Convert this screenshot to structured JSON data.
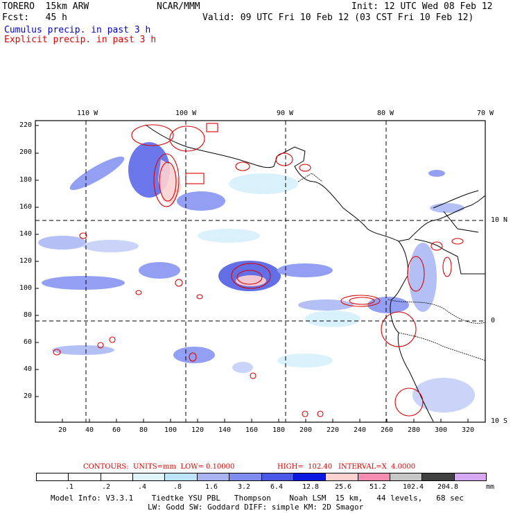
{
  "header": {
    "model_name": "TORERO  15km ARW",
    "org": "NCAR/MMM",
    "init": "Init: 12 UTC Wed 08 Feb 12",
    "fcst": "Fcst:   45 h",
    "valid": "Valid: 09 UTC Fri 10 Feb 12 (03 CST Fri 10 Feb 12)",
    "field1": "Cumulus precip. in past 3 h",
    "field2": "Explicit precip. in past 3 h"
  },
  "map": {
    "top_lon_labels": [
      "110 W",
      "100 W",
      "90 W",
      "80 W",
      "70 W"
    ],
    "right_lat_labels": [
      "10 N",
      "0",
      "10 S"
    ],
    "left_grid_labels": [
      "220",
      "200",
      "180",
      "160",
      "140",
      "120",
      "100",
      "80",
      "60",
      "40",
      "20"
    ],
    "bottom_grid_labels": [
      "20",
      "40",
      "60",
      "80",
      "100",
      "120",
      "140",
      "160",
      "180",
      "200",
      "220",
      "240",
      "260",
      "280",
      "300",
      "320"
    ]
  },
  "contour_info": {
    "contours": "CONTOURS:  UNITS=mm  LOW= 0.10000",
    "high": "HIGH=  102.40",
    "interval": "INTERVAL=X  4.0000"
  },
  "colorbar": {
    "labels": [
      ".1",
      ".2",
      ".4",
      ".8",
      "1.6",
      "3.2",
      "6.4",
      "12.8",
      "25.6",
      "51.2",
      "102.4",
      "204.8"
    ],
    "unit": "mm",
    "colors": [
      "#ffffff",
      "#ffffff",
      "#ffffff",
      "#dff3fb",
      "#bde4f8",
      "#a8b4f4",
      "#7f8df0",
      "#4a58e8",
      "#0c18e0",
      "#ffd2d2",
      "#f58cb4",
      "#c8c8c8",
      "#404040",
      "#d8a8f8"
    ]
  },
  "footer": {
    "line1": "Model Info: V3.3.1    Tiedtke YSU PBL   Thompson    Noah LSM  15 km,   44 levels,   68 sec",
    "line2": "LW: Godd SW: Goddard DIFF: simple KM: 2D Smagor"
  }
}
